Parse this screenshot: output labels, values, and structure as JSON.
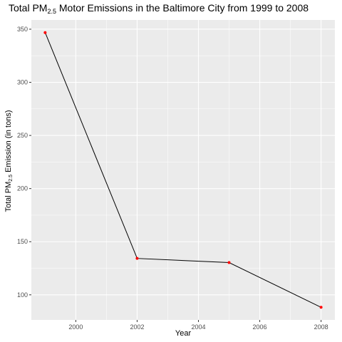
{
  "chart_data": {
    "type": "line",
    "title": {
      "prefix": "Total PM",
      "subscript": "2.5",
      "suffix": " Motor Emissions in the Baltimore City from 1999 to 2008"
    },
    "xlabel": "Year",
    "ylabel": {
      "prefix": "Total PM",
      "subscript": "2.5",
      "suffix": " Emission (in tons)"
    },
    "x": [
      1999,
      2002,
      2005,
      2008
    ],
    "y": [
      346.8,
      134.3,
      130.4,
      88.3
    ],
    "x_ticks": [
      2000,
      2002,
      2004,
      2006,
      2008
    ],
    "y_ticks": [
      100,
      150,
      200,
      250,
      300,
      350
    ],
    "xlim": [
      1998.55,
      2008.45
    ],
    "ylim": [
      76.4,
      358.7
    ],
    "grid": true,
    "colors": {
      "panel": "#ebebeb",
      "grid_major": "#ffffff",
      "line": "#000000",
      "point": "#ff0000",
      "tick_text": "#4d4d4d"
    }
  }
}
